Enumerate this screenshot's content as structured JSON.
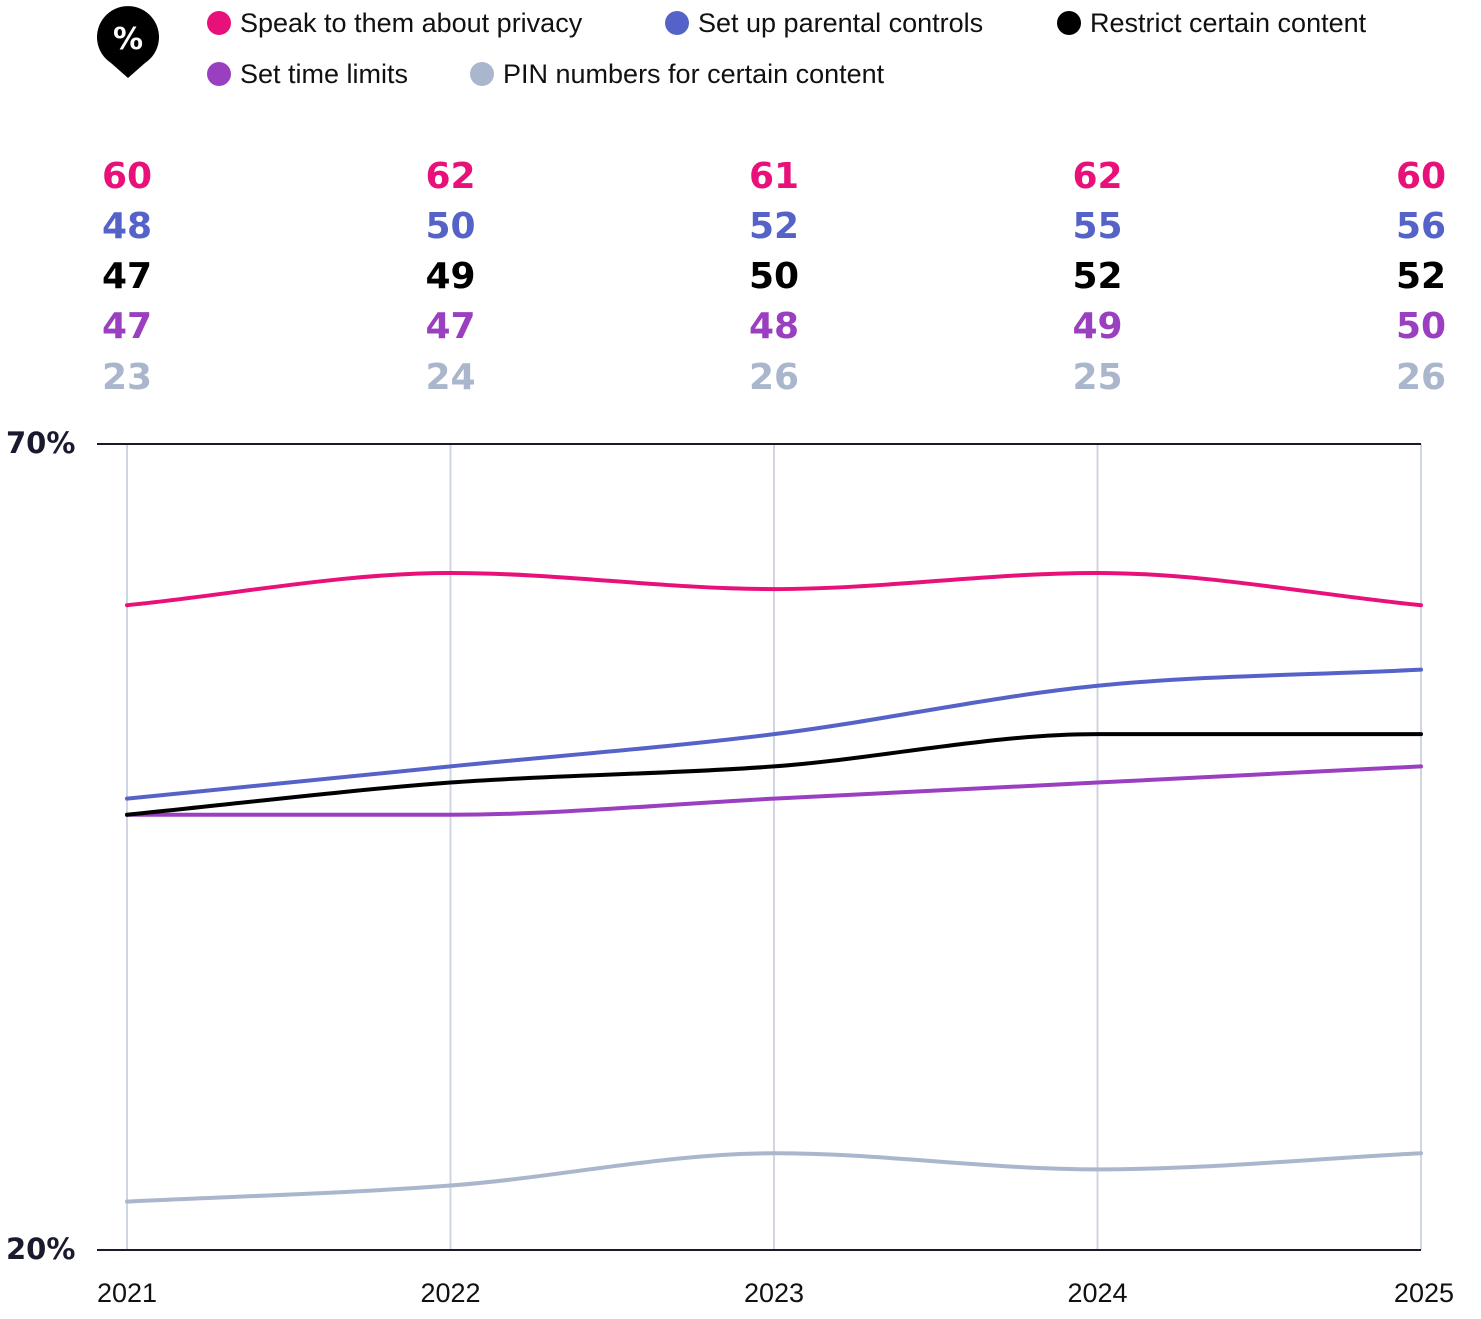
{
  "badge": {
    "symbol": "%",
    "icon": "percent-pin-icon"
  },
  "chart_data": {
    "type": "line",
    "title": "",
    "xlabel": "",
    "ylabel": "",
    "ylim": [
      20,
      70
    ],
    "y_tick_labels": [
      "70%",
      "20%"
    ],
    "grid": "vertical",
    "legend_position": "top",
    "categories": [
      "2021",
      "2022",
      "2023",
      "2024",
      "2025"
    ],
    "series": [
      {
        "name": "Speak to them about privacy",
        "color": "#e8117a",
        "values": [
          60,
          62,
          61,
          62,
          60
        ]
      },
      {
        "name": "Set up parental controls",
        "color": "#5563c8",
        "values": [
          48,
          50,
          52,
          55,
          56
        ]
      },
      {
        "name": "Restrict certain content",
        "color": "#000000",
        "values": [
          47,
          49,
          50,
          52,
          52
        ]
      },
      {
        "name": "Set time limits",
        "color": "#9a3fbf",
        "values": [
          47,
          47,
          48,
          49,
          50
        ]
      },
      {
        "name": "PIN numbers for certain content",
        "color": "#a9b6cc",
        "values": [
          23,
          24,
          26,
          25,
          26
        ]
      }
    ]
  }
}
